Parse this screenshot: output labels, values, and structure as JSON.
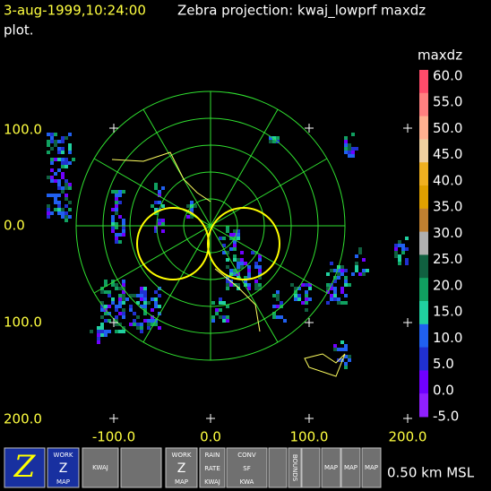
{
  "header": {
    "timestamp": "3-aug-1999,10:24:00",
    "title": "Zebra projection: kwaj_lowprf maxdz",
    "title_continued": "plot."
  },
  "colorbar": {
    "title": "maxdz",
    "labels": [
      "60.0",
      "55.0",
      "50.0",
      "45.0",
      "40.0",
      "35.0",
      "30.0",
      "25.0",
      "20.0",
      "15.0",
      "10.0",
      "5.0",
      "0.0",
      "-5.0"
    ],
    "colors": [
      "#ff4c6a",
      "#ff8080",
      "#ffb090",
      "#f0d0a0",
      "#f0b020",
      "#e0a000",
      "#c08030",
      "#b0b0b0",
      "#106040",
      "#10a060",
      "#20d0a0",
      "#2060f0",
      "#2030d0",
      "#7000ff",
      "#9020ff"
    ]
  },
  "axes": {
    "y_labels": [
      "100.0",
      "0.0",
      "100.0",
      "200.0"
    ],
    "x_labels": [
      "-100.0",
      "0.0",
      "100.0",
      "200.0"
    ]
  },
  "toolbar": {
    "buttons": [
      [
        "Z"
      ],
      [
        "WORK",
        "Z",
        "MAP"
      ],
      [
        "KWAJ"
      ],
      [],
      [
        "WORK",
        "Z",
        "MAP"
      ],
      [
        "RAIN",
        "RATE",
        "KWAJ"
      ],
      [
        "CONV",
        "SF",
        "KWA"
      ],
      [],
      [
        "BOUNDS"
      ],
      [],
      [
        "MAP"
      ],
      [
        "MAP"
      ],
      [
        "MAP"
      ]
    ],
    "status": "0.50 km MSL"
  }
}
